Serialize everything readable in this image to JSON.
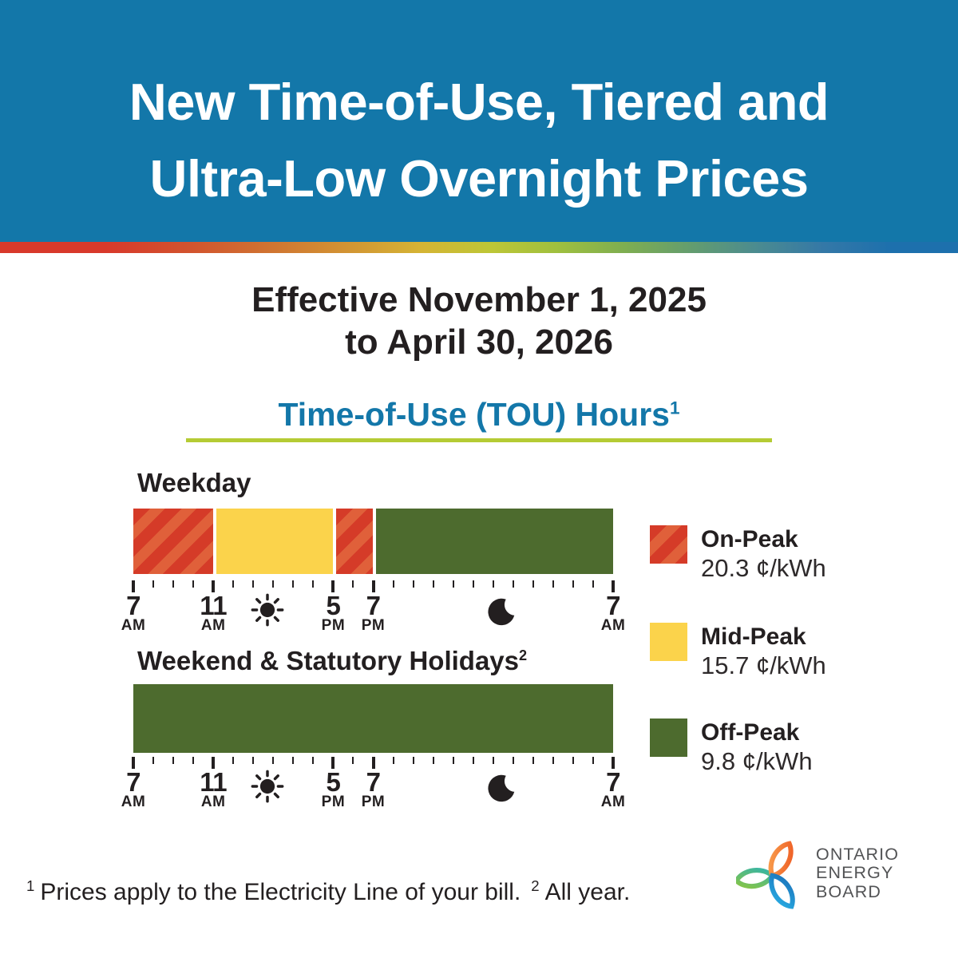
{
  "header": {
    "title_line1": "New Time-of-Use, Tiered and",
    "title_line2": "Ultra-Low Overnight Prices",
    "background_color": "#1377a9"
  },
  "effective": {
    "line1": "Effective November 1, 2025",
    "line2": "to April 30, 2026"
  },
  "tou_section": {
    "heading": "Time-of-Use (TOU) Hours",
    "heading_sup": "1",
    "heading_color": "#1377a9",
    "underline_color": "#b5cb34"
  },
  "chart_data": {
    "type": "bar",
    "title": "Time-of-Use (TOU) Hours",
    "x_axis": {
      "unit": "hour",
      "span_hours": 24,
      "minor_tick_every_hours": 1,
      "major_labels": [
        {
          "num": "7",
          "meridiem": "AM",
          "hour": 0
        },
        {
          "num": "11",
          "meridiem": "AM",
          "hour": 4
        },
        {
          "num": "5",
          "meridiem": "PM",
          "hour": 10
        },
        {
          "num": "7",
          "meridiem": "PM",
          "hour": 12
        },
        {
          "num": "7",
          "meridiem": "AM",
          "hour": 24
        }
      ],
      "day_icon": "sun",
      "night_icon": "moon",
      "sun_icon_hour": 6.7,
      "moon_icon_hour": 18.45
    },
    "series": [
      {
        "name": "Weekday",
        "segments": [
          {
            "period": "On-Peak",
            "start": "7 AM",
            "end": "11 AM",
            "hours": 4
          },
          {
            "period": "Mid-Peak",
            "start": "11 AM",
            "end": "5 PM",
            "hours": 6
          },
          {
            "period": "On-Peak",
            "start": "5 PM",
            "end": "7 PM",
            "hours": 2
          },
          {
            "period": "Off-Peak",
            "start": "7 PM",
            "end": "7 AM",
            "hours": 12
          }
        ]
      },
      {
        "name": "Weekend & Statutory Holidays",
        "name_sup": "2",
        "segments": [
          {
            "period": "Off-Peak",
            "start": "7 AM",
            "end": "7 AM",
            "hours": 24
          }
        ]
      }
    ],
    "legend": [
      {
        "label": "On-Peak",
        "price": "20.3 ¢/kWh",
        "color": "#d53b28",
        "pattern": "diagonal-stripes",
        "stripe_color": "#e0603a"
      },
      {
        "label": "Mid-Peak",
        "price": "15.7 ¢/kWh",
        "color": "#fbd34b",
        "pattern": "solid"
      },
      {
        "label": "Off-Peak",
        "price": "9.8 ¢/kWh",
        "color": "#4d6b2e",
        "pattern": "solid"
      }
    ],
    "legend_position": "right"
  },
  "footnotes": {
    "sup1": "1",
    "note1": "Prices apply to the Electricity Line of your bill.",
    "sup2": "2",
    "note2": "All year."
  },
  "logo": {
    "line1": "ONTARIO",
    "line2": "ENERGY",
    "line3": "BOARD"
  }
}
